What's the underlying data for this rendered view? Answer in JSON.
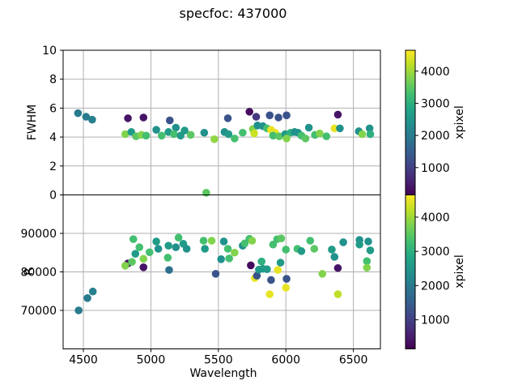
{
  "title": "specfoc: 437000",
  "colors": {
    "grid": "#b0b0b0",
    "spine": "#000000",
    "text": "#000000",
    "background": "#ffffff"
  },
  "chart_data": [
    {
      "type": "scatter",
      "ylabel": "FWHM",
      "xlabel": "",
      "xlim": [
        4350,
        6700
      ],
      "ylim": [
        0,
        10
      ],
      "xticks": [
        4500,
        5000,
        5500,
        6000,
        6500
      ],
      "yticks": [
        0,
        2,
        4,
        6,
        8,
        10
      ],
      "grid": true,
      "show_xticklabels": false,
      "legend": "none",
      "colorbar": {
        "label": "xpixel",
        "ticks": [
          1000,
          2000,
          3000,
          4000
        ],
        "vmin": 150,
        "vmax": 4650,
        "colormap": "viridis"
      },
      "points": [
        {
          "x": 4460,
          "y": 5.65,
          "c": 2000
        },
        {
          "x": 4520,
          "y": 5.4,
          "c": 2000
        },
        {
          "x": 4565,
          "y": 5.2,
          "c": 2100
        },
        {
          "x": 4830,
          "y": 5.3,
          "c": 400
        },
        {
          "x": 4945,
          "y": 5.35,
          "c": 400
        },
        {
          "x": 4810,
          "y": 4.2,
          "c": 3800
        },
        {
          "x": 4855,
          "y": 4.35,
          "c": 2600
        },
        {
          "x": 4890,
          "y": 4.05,
          "c": 3500
        },
        {
          "x": 4930,
          "y": 4.15,
          "c": 3800
        },
        {
          "x": 4965,
          "y": 4.1,
          "c": 3300
        },
        {
          "x": 5040,
          "y": 4.5,
          "c": 2400
        },
        {
          "x": 5080,
          "y": 4.1,
          "c": 3300
        },
        {
          "x": 5140,
          "y": 5.15,
          "c": 1300
        },
        {
          "x": 5185,
          "y": 4.65,
          "c": 2400
        },
        {
          "x": 5130,
          "y": 4.35,
          "c": 2600
        },
        {
          "x": 5170,
          "y": 4.2,
          "c": 3300
        },
        {
          "x": 5220,
          "y": 4.1,
          "c": 2600
        },
        {
          "x": 5250,
          "y": 4.45,
          "c": 2600
        },
        {
          "x": 5295,
          "y": 4.15,
          "c": 3500
        },
        {
          "x": 5395,
          "y": 4.3,
          "c": 2400
        },
        {
          "x": 5470,
          "y": 3.85,
          "c": 3900
        },
        {
          "x": 5410,
          "y": 0.15,
          "c": 3500
        },
        {
          "x": 5570,
          "y": 5.3,
          "c": 1300
        },
        {
          "x": 5545,
          "y": 4.35,
          "c": 2400
        },
        {
          "x": 5575,
          "y": 4.2,
          "c": 2600
        },
        {
          "x": 5620,
          "y": 3.9,
          "c": 3300
        },
        {
          "x": 5680,
          "y": 4.3,
          "c": 3300
        },
        {
          "x": 5730,
          "y": 5.75,
          "c": 300
        },
        {
          "x": 5780,
          "y": 5.4,
          "c": 900
        },
        {
          "x": 5880,
          "y": 5.5,
          "c": 1300
        },
        {
          "x": 5945,
          "y": 5.35,
          "c": 1300
        },
        {
          "x": 6005,
          "y": 5.5,
          "c": 1300
        },
        {
          "x": 6385,
          "y": 5.55,
          "c": 400
        },
        {
          "x": 5755,
          "y": 4.55,
          "c": 3800
        },
        {
          "x": 5765,
          "y": 4.25,
          "c": 4300
        },
        {
          "x": 5790,
          "y": 4.8,
          "c": 2400
        },
        {
          "x": 5830,
          "y": 4.75,
          "c": 2400
        },
        {
          "x": 5860,
          "y": 4.6,
          "c": 3300
        },
        {
          "x": 5890,
          "y": 4.5,
          "c": 4500
        },
        {
          "x": 5920,
          "y": 4.3,
          "c": 4500
        },
        {
          "x": 5905,
          "y": 4.1,
          "c": 3300
        },
        {
          "x": 5950,
          "y": 4.05,
          "c": 3500
        },
        {
          "x": 5995,
          "y": 4.2,
          "c": 2600
        },
        {
          "x": 6035,
          "y": 4.3,
          "c": 3000
        },
        {
          "x": 6065,
          "y": 4.35,
          "c": 2400
        },
        {
          "x": 6005,
          "y": 3.9,
          "c": 3800
        },
        {
          "x": 6090,
          "y": 4.3,
          "c": 2400
        },
        {
          "x": 6170,
          "y": 4.65,
          "c": 2400
        },
        {
          "x": 6115,
          "y": 4.1,
          "c": 3300
        },
        {
          "x": 6145,
          "y": 3.9,
          "c": 3500
        },
        {
          "x": 6215,
          "y": 4.15,
          "c": 3300
        },
        {
          "x": 6250,
          "y": 4.25,
          "c": 3800
        },
        {
          "x": 6300,
          "y": 4.05,
          "c": 3300
        },
        {
          "x": 6360,
          "y": 4.6,
          "c": 4500
        },
        {
          "x": 6400,
          "y": 4.6,
          "c": 2400
        },
        {
          "x": 6540,
          "y": 4.4,
          "c": 2400
        },
        {
          "x": 6565,
          "y": 4.2,
          "c": 3800
        },
        {
          "x": 6620,
          "y": 4.6,
          "c": 2400
        },
        {
          "x": 6625,
          "y": 4.2,
          "c": 3000
        }
      ]
    },
    {
      "type": "scatter",
      "ylabel": "R",
      "xlabel": "Wavelength",
      "xlim": [
        4350,
        6700
      ],
      "ylim": [
        60000,
        100000
      ],
      "xticks": [
        4500,
        5000,
        5500,
        6000,
        6500
      ],
      "yticks": [
        70000,
        80000,
        90000
      ],
      "grid": true,
      "show_xticklabels": true,
      "legend": "none",
      "colorbar": {
        "label": "xpixel",
        "ticks": [
          1000,
          2000,
          3000,
          4000
        ],
        "vmin": 150,
        "vmax": 4650,
        "colormap": "viridis"
      },
      "points": [
        {
          "x": 4465,
          "y": 70000,
          "c": 2000
        },
        {
          "x": 4530,
          "y": 73200,
          "c": 2000
        },
        {
          "x": 4570,
          "y": 74900,
          "c": 2100
        },
        {
          "x": 4830,
          "y": 82200,
          "c": 400
        },
        {
          "x": 4810,
          "y": 81600,
          "c": 3800
        },
        {
          "x": 4860,
          "y": 82600,
          "c": 3500
        },
        {
          "x": 4870,
          "y": 88500,
          "c": 3300
        },
        {
          "x": 4885,
          "y": 84700,
          "c": 2600
        },
        {
          "x": 4915,
          "y": 86400,
          "c": 3300
        },
        {
          "x": 4945,
          "y": 81200,
          "c": 400
        },
        {
          "x": 4945,
          "y": 83400,
          "c": 3800
        },
        {
          "x": 4990,
          "y": 85100,
          "c": 3300
        },
        {
          "x": 5040,
          "y": 87900,
          "c": 2600
        },
        {
          "x": 5055,
          "y": 86000,
          "c": 2400
        },
        {
          "x": 5130,
          "y": 86800,
          "c": 2600
        },
        {
          "x": 5125,
          "y": 83700,
          "c": 3300
        },
        {
          "x": 5135,
          "y": 80500,
          "c": 1800
        },
        {
          "x": 5185,
          "y": 86400,
          "c": 2400
        },
        {
          "x": 5205,
          "y": 88900,
          "c": 3300
        },
        {
          "x": 5240,
          "y": 87300,
          "c": 2600
        },
        {
          "x": 5265,
          "y": 86000,
          "c": 2400
        },
        {
          "x": 5390,
          "y": 88100,
          "c": 3300
        },
        {
          "x": 5400,
          "y": 86000,
          "c": 2600
        },
        {
          "x": 5450,
          "y": 88100,
          "c": 3800
        },
        {
          "x": 5480,
          "y": 79500,
          "c": 1300
        },
        {
          "x": 5520,
          "y": 83300,
          "c": 2400
        },
        {
          "x": 5540,
          "y": 87900,
          "c": 2400
        },
        {
          "x": 5570,
          "y": 86000,
          "c": 3300
        },
        {
          "x": 5580,
          "y": 83500,
          "c": 3300
        },
        {
          "x": 5620,
          "y": 85000,
          "c": 3800
        },
        {
          "x": 5680,
          "y": 86800,
          "c": 2400
        },
        {
          "x": 5695,
          "y": 87400,
          "c": 3300
        },
        {
          "x": 5730,
          "y": 88600,
          "c": 3300
        },
        {
          "x": 5750,
          "y": 88100,
          "c": 3800
        },
        {
          "x": 5740,
          "y": 81700,
          "c": 300
        },
        {
          "x": 5770,
          "y": 78400,
          "c": 4500
        },
        {
          "x": 5785,
          "y": 79000,
          "c": 1300
        },
        {
          "x": 5800,
          "y": 80600,
          "c": 2600
        },
        {
          "x": 5820,
          "y": 82700,
          "c": 3000
        },
        {
          "x": 5830,
          "y": 80800,
          "c": 2600
        },
        {
          "x": 5860,
          "y": 80700,
          "c": 2600
        },
        {
          "x": 5890,
          "y": 77900,
          "c": 1300
        },
        {
          "x": 5880,
          "y": 74200,
          "c": 4500
        },
        {
          "x": 5905,
          "y": 87100,
          "c": 3300
        },
        {
          "x": 5935,
          "y": 88500,
          "c": 3300
        },
        {
          "x": 5940,
          "y": 80500,
          "c": 4500
        },
        {
          "x": 5960,
          "y": 82400,
          "c": 2600
        },
        {
          "x": 5965,
          "y": 88700,
          "c": 3500
        },
        {
          "x": 6000,
          "y": 85800,
          "c": 3300
        },
        {
          "x": 6005,
          "y": 78200,
          "c": 1300
        },
        {
          "x": 6000,
          "y": 75900,
          "c": 4500
        },
        {
          "x": 6085,
          "y": 86000,
          "c": 3300
        },
        {
          "x": 6115,
          "y": 85400,
          "c": 2600
        },
        {
          "x": 6180,
          "y": 88100,
          "c": 3300
        },
        {
          "x": 6210,
          "y": 86000,
          "c": 3500
        },
        {
          "x": 6270,
          "y": 79500,
          "c": 3800
        },
        {
          "x": 6340,
          "y": 85800,
          "c": 2600
        },
        {
          "x": 6360,
          "y": 83900,
          "c": 2400
        },
        {
          "x": 6385,
          "y": 81000,
          "c": 400
        },
        {
          "x": 6385,
          "y": 74200,
          "c": 4200
        },
        {
          "x": 6425,
          "y": 87700,
          "c": 2400
        },
        {
          "x": 6545,
          "y": 88300,
          "c": 2400
        },
        {
          "x": 6545,
          "y": 87100,
          "c": 2600
        },
        {
          "x": 6610,
          "y": 87900,
          "c": 2400
        },
        {
          "x": 6625,
          "y": 85600,
          "c": 2600
        },
        {
          "x": 6600,
          "y": 82800,
          "c": 3300
        },
        {
          "x": 6600,
          "y": 81100,
          "c": 3800
        }
      ]
    }
  ]
}
